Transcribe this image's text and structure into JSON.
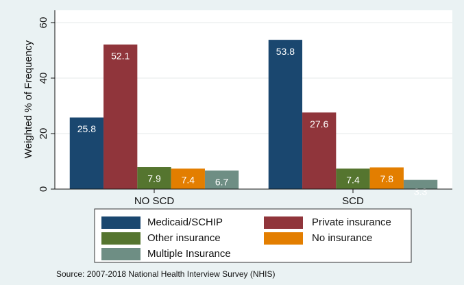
{
  "chart_data": {
    "type": "bar",
    "categories": [
      "NO SCD",
      "SCD"
    ],
    "series": [
      {
        "name": "Medicaid/SCHIP",
        "color": "#1a476f",
        "values": [
          25.8,
          53.8
        ]
      },
      {
        "name": "Private insurance",
        "color": "#90353b",
        "values": [
          52.1,
          27.6
        ]
      },
      {
        "name": "Other insurance",
        "color": "#55752f",
        "values": [
          7.9,
          7.4
        ]
      },
      {
        "name": "No insurance",
        "color": "#e37e00",
        "values": [
          7.4,
          7.8
        ]
      },
      {
        "name": "Multiple Insurance",
        "color": "#6e8e84",
        "values": [
          6.7,
          3.3
        ]
      }
    ],
    "y_label": "Weighted % of Frequency",
    "ylim": [
      0,
      60
    ],
    "yticks": [
      0,
      20,
      40,
      60
    ],
    "grid": true,
    "note": "Source: 2007-2018 National Health Interview Survey (NHIS)"
  }
}
